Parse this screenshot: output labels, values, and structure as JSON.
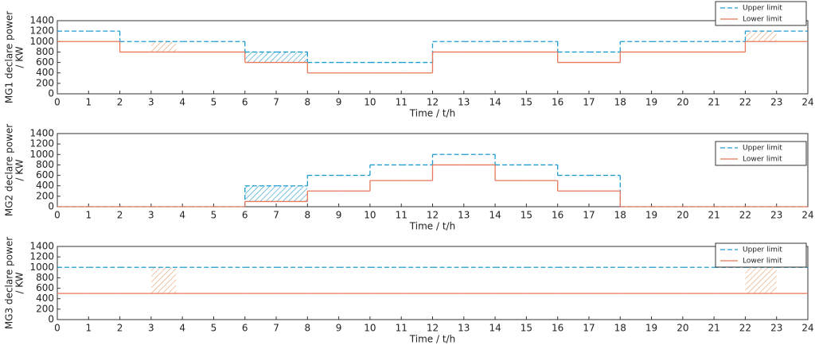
{
  "chart_data": [
    {
      "type": "line",
      "step": "post",
      "ylabel": [
        "MG1 declare power",
        "/ KW"
      ],
      "xlabel": "Time / t/h",
      "x": [
        0,
        1,
        2,
        3,
        4,
        5,
        6,
        7,
        8,
        9,
        10,
        11,
        12,
        13,
        14,
        15,
        16,
        17,
        18,
        19,
        20,
        21,
        22,
        23
      ],
      "series": [
        {
          "name": "Upper limit",
          "color": "#1f9bd0",
          "dash": true,
          "values": [
            1200,
            1200,
            1000,
            1000,
            1000,
            1000,
            800,
            800,
            600,
            600,
            600,
            600,
            1000,
            1000,
            1000,
            1000,
            800,
            800,
            1000,
            1000,
            1000,
            1000,
            1200,
            1200
          ]
        },
        {
          "name": "Lower limit",
          "color": "#e8785a",
          "dash": false,
          "values": [
            1000,
            1000,
            800,
            800,
            800,
            800,
            600,
            600,
            400,
            400,
            400,
            400,
            800,
            800,
            800,
            800,
            600,
            600,
            800,
            800,
            800,
            800,
            1000,
            1000
          ]
        }
      ],
      "regions": [
        {
          "x": [
            3,
            3.8
          ],
          "y": [
            800,
            1000
          ],
          "color": "#e8a070"
        },
        {
          "x": [
            6,
            8
          ],
          "y": [
            600,
            800
          ],
          "color": "#1f9bd0"
        },
        {
          "x": [
            22,
            23
          ],
          "y": [
            1000,
            1200
          ],
          "color": "#e8a070"
        }
      ],
      "xlim": [
        0,
        24
      ],
      "xticks": [
        0,
        1,
        2,
        3,
        4,
        5,
        6,
        7,
        8,
        9,
        10,
        11,
        12,
        13,
        14,
        15,
        16,
        17,
        18,
        19,
        20,
        21,
        22,
        23,
        24
      ],
      "ylim": [
        0,
        1400
      ],
      "yticks": [
        0,
        200,
        400,
        600,
        800,
        1000,
        1200,
        1400
      ],
      "legend": "upper right"
    },
    {
      "type": "line",
      "step": "post",
      "ylabel": [
        "MG2 declare power",
        "/ KW"
      ],
      "xlabel": "Time / t/h",
      "x": [
        0,
        1,
        2,
        3,
        4,
        5,
        6,
        7,
        8,
        9,
        10,
        11,
        12,
        13,
        14,
        15,
        16,
        17,
        18,
        19,
        20,
        21,
        22,
        23
      ],
      "series": [
        {
          "name": "Upper limit",
          "color": "#1f9bd0",
          "dash": true,
          "values": [
            0,
            0,
            0,
            0,
            0,
            0,
            400,
            400,
            600,
            600,
            800,
            800,
            1000,
            1000,
            800,
            800,
            600,
            600,
            0,
            0,
            0,
            0,
            0,
            0
          ]
        },
        {
          "name": "Lower limit",
          "color": "#e8785a",
          "dash": false,
          "values": [
            0,
            0,
            0,
            0,
            0,
            0,
            100,
            100,
            300,
            300,
            500,
            500,
            800,
            800,
            500,
            500,
            300,
            300,
            0,
            0,
            0,
            0,
            0,
            0
          ]
        }
      ],
      "regions": [
        {
          "x": [
            6,
            8
          ],
          "y": [
            100,
            400
          ],
          "color": "#1f9bd0"
        }
      ],
      "xlim": [
        0,
        24
      ],
      "xticks": [
        0,
        1,
        2,
        3,
        4,
        5,
        6,
        7,
        8,
        9,
        10,
        11,
        12,
        13,
        14,
        15,
        16,
        17,
        18,
        19,
        20,
        21,
        22,
        23,
        24
      ],
      "ylim": [
        0,
        1400
      ],
      "yticks": [
        0,
        200,
        400,
        600,
        800,
        1000,
        1200,
        1400
      ],
      "legend": "upper right"
    },
    {
      "type": "line",
      "step": "post",
      "ylabel": [
        "MG3 declare power",
        "/ KW"
      ],
      "xlabel": "Time / t/h",
      "x": [
        0,
        1,
        2,
        3,
        4,
        5,
        6,
        7,
        8,
        9,
        10,
        11,
        12,
        13,
        14,
        15,
        16,
        17,
        18,
        19,
        20,
        21,
        22,
        23
      ],
      "series": [
        {
          "name": "Upper limit",
          "color": "#1f9bd0",
          "dash": true,
          "values": [
            1000,
            1000,
            1000,
            1000,
            1000,
            1000,
            1000,
            1000,
            1000,
            1000,
            1000,
            1000,
            1000,
            1000,
            1000,
            1000,
            1000,
            1000,
            1000,
            1000,
            1000,
            1000,
            1000,
            1000
          ]
        },
        {
          "name": "Lower limit",
          "color": "#e8785a",
          "dash": false,
          "values": [
            500,
            500,
            500,
            500,
            500,
            500,
            500,
            500,
            500,
            500,
            500,
            500,
            500,
            500,
            500,
            500,
            500,
            500,
            500,
            500,
            500,
            500,
            500,
            500
          ]
        }
      ],
      "regions": [
        {
          "x": [
            3,
            3.8
          ],
          "y": [
            500,
            1000
          ],
          "color": "#e8a070"
        },
        {
          "x": [
            22,
            23
          ],
          "y": [
            500,
            1000
          ],
          "color": "#e8a070"
        }
      ],
      "xlim": [
        0,
        24
      ],
      "xticks": [
        0,
        1,
        2,
        3,
        4,
        5,
        6,
        7,
        8,
        9,
        10,
        11,
        12,
        13,
        14,
        15,
        16,
        17,
        18,
        19,
        20,
        21,
        22,
        23,
        24
      ],
      "ylim": [
        0,
        1400
      ],
      "yticks": [
        0,
        200,
        400,
        600,
        800,
        1000,
        1200,
        1400
      ],
      "legend": "upper right"
    }
  ]
}
